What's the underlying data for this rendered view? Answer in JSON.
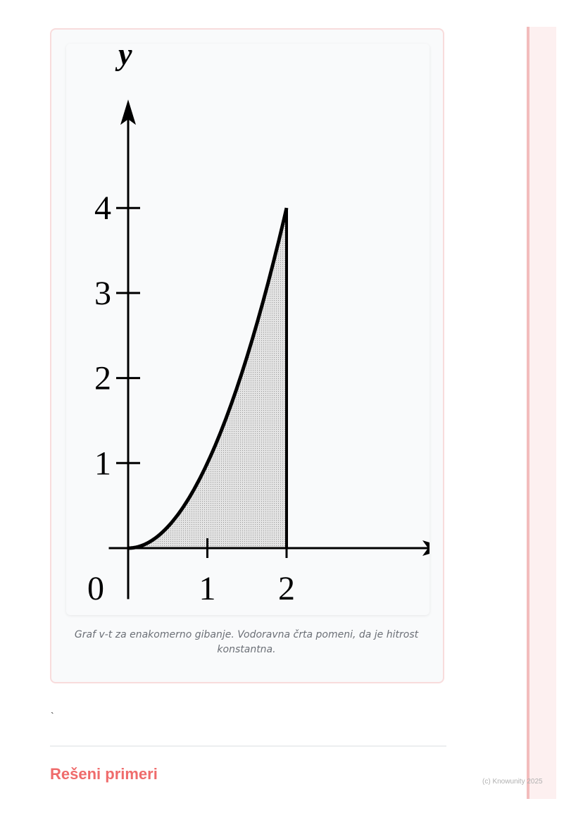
{
  "figure": {
    "caption": "Graf v-t za enakomerno gibanje. Vodoravna črta pomeni, da je hitrost konstantna."
  },
  "chart_data": {
    "type": "area",
    "function": "y = x^2",
    "x": [
      0,
      0.25,
      0.5,
      0.75,
      1,
      1.25,
      1.5,
      1.75,
      2
    ],
    "y": [
      0,
      0.0625,
      0.25,
      0.5625,
      1,
      1.5625,
      2.25,
      3.0625,
      4
    ],
    "shaded_region": {
      "from_x": 0,
      "to_x": 2
    },
    "xlabel": "x",
    "ylabel": "y",
    "x_ticks": [
      "1",
      "2"
    ],
    "y_ticks": [
      "1",
      "2",
      "3",
      "4"
    ],
    "origin_label": "0",
    "xlim": [
      -0.6,
      3.2
    ],
    "ylim": [
      -0.6,
      5.3
    ],
    "grid": false,
    "colors": {
      "line": "#000000",
      "fill": "#d4d4d4"
    }
  },
  "body": {
    "stray_text": "`"
  },
  "section": {
    "heading": "Rešeni primeri"
  },
  "footer": {
    "copyright": "(c) Knowunity 2025"
  },
  "colors": {
    "accent": "#ef6b6b",
    "card_border": "#f8dcdc",
    "sidebar": "#f3bcbc"
  }
}
